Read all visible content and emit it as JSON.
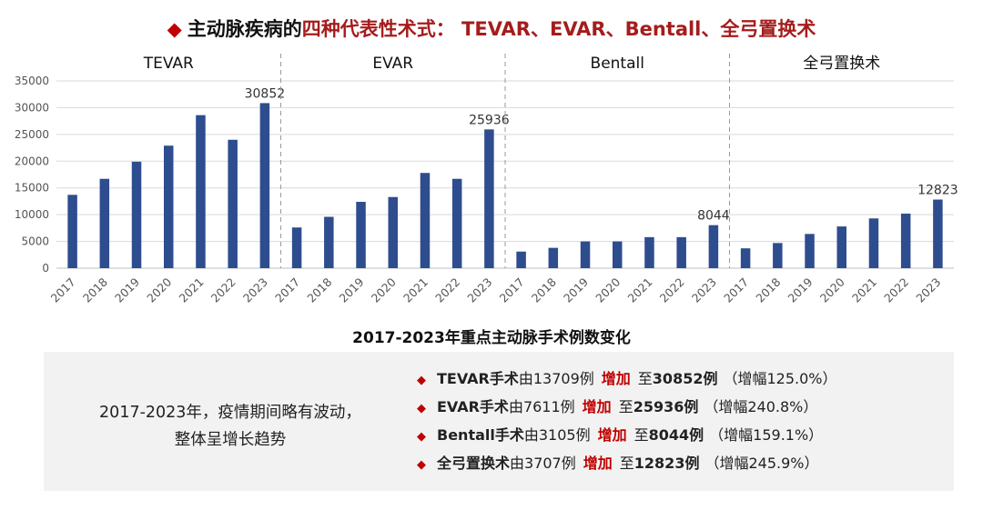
{
  "header": {
    "bullet": "◆",
    "title_black": "主动脉疾病的",
    "title_red": "四种代表性术式： TEVAR、EVAR、Bentall、全弓置换术"
  },
  "colors": {
    "bar": "#2e4d8e",
    "accent_red": "#c00000",
    "grid": "#d9d9d9",
    "divider": "#999999"
  },
  "chart_data": {
    "type": "bar",
    "title": "2017-2023年重点主动脉手术例数变化",
    "ylim": [
      0,
      35000
    ],
    "yticks": [
      0,
      5000,
      10000,
      15000,
      20000,
      25000,
      30000,
      35000
    ],
    "grid": true,
    "groups": [
      {
        "name": "TEVAR",
        "categories": [
          "2017",
          "2018",
          "2019",
          "2020",
          "2021",
          "2022",
          "2023"
        ],
        "values": [
          13709,
          16700,
          19900,
          22900,
          28600,
          24000,
          30852
        ],
        "label_last": "30852"
      },
      {
        "name": "EVAR",
        "categories": [
          "2017",
          "2018",
          "2019",
          "2020",
          "2021",
          "2022",
          "2023"
        ],
        "values": [
          7611,
          9600,
          12400,
          13300,
          17800,
          16700,
          25936
        ],
        "label_last": "25936"
      },
      {
        "name": "Bentall",
        "categories": [
          "2017",
          "2018",
          "2019",
          "2020",
          "2021",
          "2022",
          "2023"
        ],
        "values": [
          3105,
          3800,
          5000,
          5000,
          5800,
          5800,
          8044
        ],
        "label_last": "8044"
      },
      {
        "name": "全弓置换术",
        "categories": [
          "2017",
          "2018",
          "2019",
          "2020",
          "2021",
          "2022",
          "2023"
        ],
        "values": [
          3707,
          4700,
          6400,
          7800,
          9300,
          10200,
          12823
        ],
        "label_last": "12823"
      }
    ]
  },
  "summary": {
    "line1": "2017-2023年，疫情期间略有波动，",
    "line2": "整体呈增长趋势"
  },
  "bullets": [
    {
      "marker": "◆",
      "name": "TEVAR手术",
      "from": "由13709例",
      "increase": "增加",
      "to_prefix": "至",
      "to": "30852例",
      "pct": "（增幅125.0%）"
    },
    {
      "marker": "◆",
      "name": "EVAR手术",
      "from": "由7611例",
      "increase": "增加",
      "to_prefix": "至",
      "to": "25936例",
      "pct": "（增幅240.8%）"
    },
    {
      "marker": "◆",
      "name": "Bentall手术",
      "from": "由3105例",
      "increase": "增加",
      "to_prefix": "至",
      "to": "8044例",
      "pct": "（增幅159.1%）"
    },
    {
      "marker": "◆",
      "name": "全弓置换术",
      "from": "由3707例",
      "increase": "增加",
      "to_prefix": "至",
      "to": "12823例",
      "pct": "（增幅245.9%）"
    }
  ]
}
